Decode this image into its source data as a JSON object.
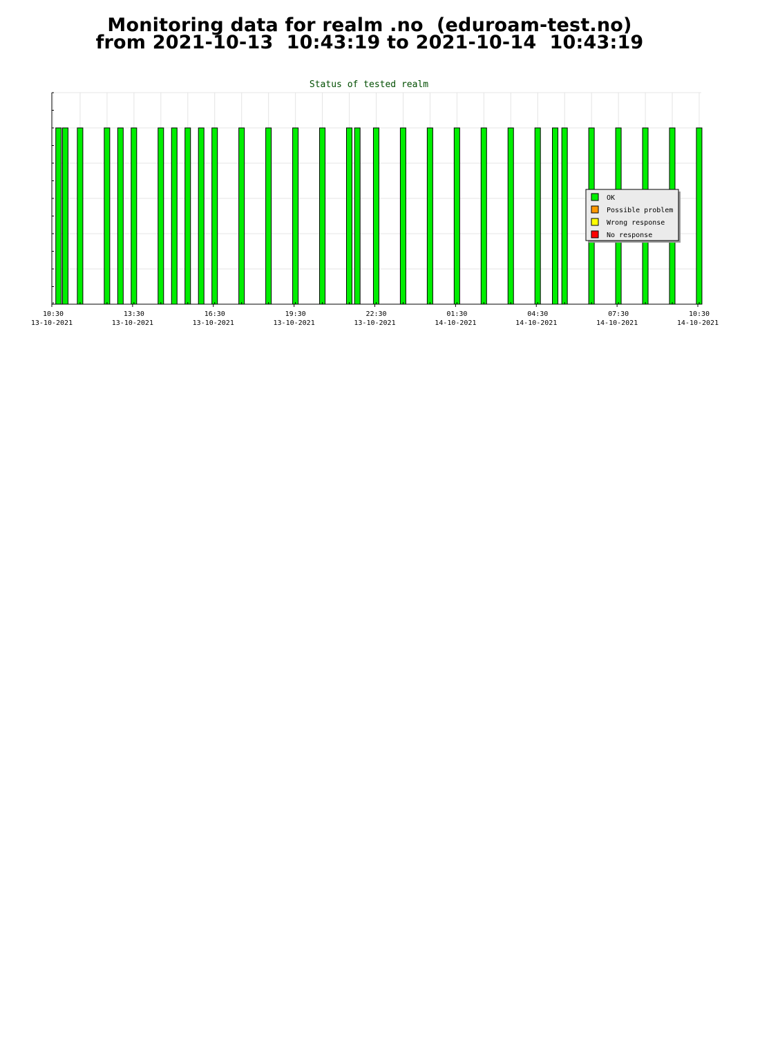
{
  "header": {
    "title_line1": "Monitoring data for realm .no  (eduroam-test.no)",
    "title_line2": "from 2021-10-13  10:43:19 to 2021-10-14  10:43:19"
  },
  "chart_data": {
    "type": "bar",
    "title": "Status of tested realm",
    "x_unit": "hours since 13-10-2021 10:30",
    "xlim": [
      0,
      24
    ],
    "ylim": [
      0,
      6
    ],
    "grid": true,
    "legend_position": "right",
    "x_ticks": [
      {
        "time": "10:30",
        "date": "13-10-2021",
        "x": 0
      },
      {
        "time": "13:30",
        "date": "13-10-2021",
        "x": 3
      },
      {
        "time": "16:30",
        "date": "13-10-2021",
        "x": 6
      },
      {
        "time": "19:30",
        "date": "13-10-2021",
        "x": 9
      },
      {
        "time": "22:30",
        "date": "13-10-2021",
        "x": 12
      },
      {
        "time": "01:30",
        "date": "14-10-2021",
        "x": 15
      },
      {
        "time": "04:30",
        "date": "14-10-2021",
        "x": 18
      },
      {
        "time": "07:30",
        "date": "14-10-2021",
        "x": 21
      },
      {
        "time": "10:30",
        "date": "14-10-2021",
        "x": 24
      }
    ],
    "series": [
      {
        "name": "OK",
        "color": "#00ee00",
        "points": [
          {
            "x": 0.25,
            "value": 5
          },
          {
            "x": 0.5,
            "value": 5
          },
          {
            "x": 1.05,
            "value": 5
          },
          {
            "x": 2.05,
            "value": 5
          },
          {
            "x": 2.55,
            "value": 5
          },
          {
            "x": 3.05,
            "value": 5
          },
          {
            "x": 4.05,
            "value": 5
          },
          {
            "x": 4.55,
            "value": 5
          },
          {
            "x": 5.05,
            "value": 5
          },
          {
            "x": 5.55,
            "value": 5
          },
          {
            "x": 6.05,
            "value": 5
          },
          {
            "x": 7.05,
            "value": 5
          },
          {
            "x": 8.05,
            "value": 5
          },
          {
            "x": 9.05,
            "value": 5
          },
          {
            "x": 10.05,
            "value": 5
          },
          {
            "x": 11.05,
            "value": 5
          },
          {
            "x": 11.35,
            "value": 5
          },
          {
            "x": 12.05,
            "value": 5
          },
          {
            "x": 13.05,
            "value": 5
          },
          {
            "x": 14.05,
            "value": 5
          },
          {
            "x": 15.05,
            "value": 5
          },
          {
            "x": 16.05,
            "value": 5
          },
          {
            "x": 17.05,
            "value": 5
          },
          {
            "x": 18.05,
            "value": 5
          },
          {
            "x": 18.7,
            "value": 5
          },
          {
            "x": 19.05,
            "value": 5
          },
          {
            "x": 20.05,
            "value": 5
          },
          {
            "x": 21.05,
            "value": 5
          },
          {
            "x": 22.05,
            "value": 5
          },
          {
            "x": 23.05,
            "value": 5
          },
          {
            "x": 24.05,
            "value": 5
          }
        ]
      },
      {
        "name": "Possible problem",
        "color": "#ff9900",
        "points": []
      },
      {
        "name": "Wrong response",
        "color": "#ffff00",
        "points": []
      },
      {
        "name": "No response",
        "color": "#ff0000",
        "points": []
      }
    ]
  }
}
